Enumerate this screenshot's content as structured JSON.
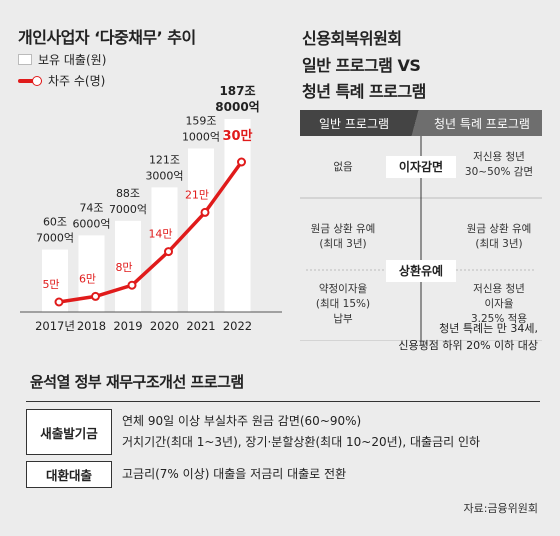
{
  "left_title": "개인사업자 ‘다중채무’ 추이",
  "legend": {
    "loan": "보유 대출(원)",
    "borrowers": "차주 수(명)"
  },
  "colors": {
    "red": "#e01b1b",
    "dark_header": "#444444",
    "mid_header": "#6e6e6e"
  },
  "chart_data": {
    "type": "bar",
    "categories": [
      "2017년",
      "2018",
      "2019",
      "2020",
      "2021",
      "2022"
    ],
    "series": [
      {
        "name": "보유 대출(원)",
        "values": [
          607000,
          746000,
          887000,
          1213000,
          1591000,
          1878000
        ],
        "labels": [
          [
            "60조",
            "7000억"
          ],
          [
            "74조",
            "6000억"
          ],
          [
            "88조",
            "7000억"
          ],
          [
            "121조",
            "3000억"
          ],
          [
            "159조",
            "1000억"
          ],
          [
            "187조",
            "8000억"
          ]
        ]
      },
      {
        "name": "차주 수(명)",
        "values": [
          5,
          6,
          8,
          14,
          21,
          30
        ],
        "labels": [
          "5만",
          "6만",
          "8만",
          "14만",
          "21만",
          "30만"
        ]
      }
    ]
  },
  "right_title": [
    "신용회복위원회",
    "일반 프로그램 VS",
    "청년 특례 프로그램"
  ],
  "compare": {
    "general_header": "일반 프로그램",
    "youth_header": "청년 특례 프로그램",
    "rows": [
      {
        "category": "이자감면",
        "general": [
          "없음"
        ],
        "youth": [
          "저신용 청년",
          "30~50% 감면"
        ]
      },
      {
        "category": "상환유예",
        "general": [
          "원금 상환 유예",
          "(최대 3년)",
          "",
          "약정이자율",
          "(최대 15%)",
          "납부"
        ],
        "youth": [
          "원금 상환 유예",
          "(최대 3년)",
          "",
          "저신용 청년",
          "이자율",
          "3.25% 적용"
        ]
      }
    ]
  },
  "note": [
    "청년 특례는 만 34세,",
    "신용평점 하위 20% 이하 대상"
  ],
  "bottom_title": "윤석열 정부 재무구조개선 프로그램",
  "programs": [
    {
      "name": "새출발기금",
      "lines": [
        "연체 90일 이상 부실차주 원금 감면(60~90%)",
        "거치기간(최대 1~3년), 장기·분할상환(최대 10~20년), 대출금리 인하"
      ]
    },
    {
      "name": "대환대출",
      "lines": [
        "고금리(7%  이상) 대출을 저금리 대출로 전환"
      ]
    }
  ],
  "source": "자료:금융위원회"
}
